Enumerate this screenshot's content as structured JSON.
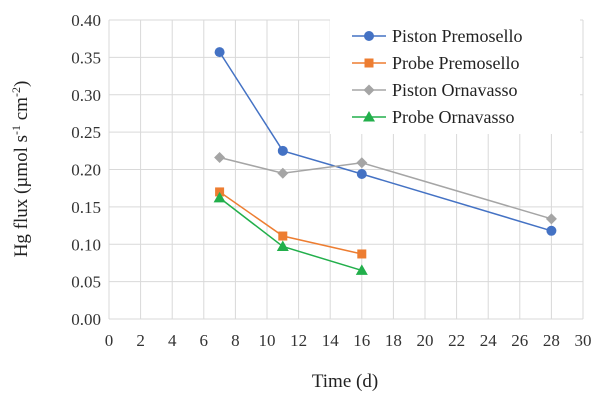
{
  "chart_data": {
    "type": "line",
    "title": "",
    "xlabel": "Time (d)",
    "ylabel": "Hg flux (µmol s-1 cm-2)",
    "ylabel_parts": {
      "pre": "Hg flux (µmol s",
      "sup1": "-1",
      "mid": " cm",
      "sup2": "-2",
      "post": ")"
    },
    "xlim": [
      0,
      30
    ],
    "ylim": [
      0,
      0.4
    ],
    "xticks": [
      "0",
      "2",
      "4",
      "6",
      "8",
      "10",
      "12",
      "14",
      "16",
      "18",
      "20",
      "22",
      "24",
      "26",
      "28",
      "30"
    ],
    "yticks": [
      "0.00",
      "0.05",
      "0.10",
      "0.15",
      "0.20",
      "0.25",
      "0.30",
      "0.35",
      "0.40"
    ],
    "grid": true,
    "legend_position": "top-right",
    "series": [
      {
        "name": "Piston Premosello",
        "color": "#4472C4",
        "marker": "circle",
        "x": [
          7,
          11,
          16,
          28
        ],
        "values": [
          0.357,
          0.225,
          0.194,
          0.118
        ]
      },
      {
        "name": "Probe Premosello",
        "color": "#ED7D31",
        "marker": "square",
        "x": [
          7,
          11,
          16
        ],
        "values": [
          0.17,
          0.111,
          0.087
        ]
      },
      {
        "name": "Piston Ornavasso",
        "color": "#A5A5A5",
        "marker": "diamond",
        "x": [
          7,
          11,
          16,
          28
        ],
        "values": [
          0.216,
          0.195,
          0.209,
          0.134
        ]
      },
      {
        "name": "Probe Ornavasso",
        "color": "#22AF4B",
        "marker": "triangle",
        "x": [
          7,
          11,
          16
        ],
        "values": [
          0.162,
          0.097,
          0.065
        ]
      }
    ]
  }
}
